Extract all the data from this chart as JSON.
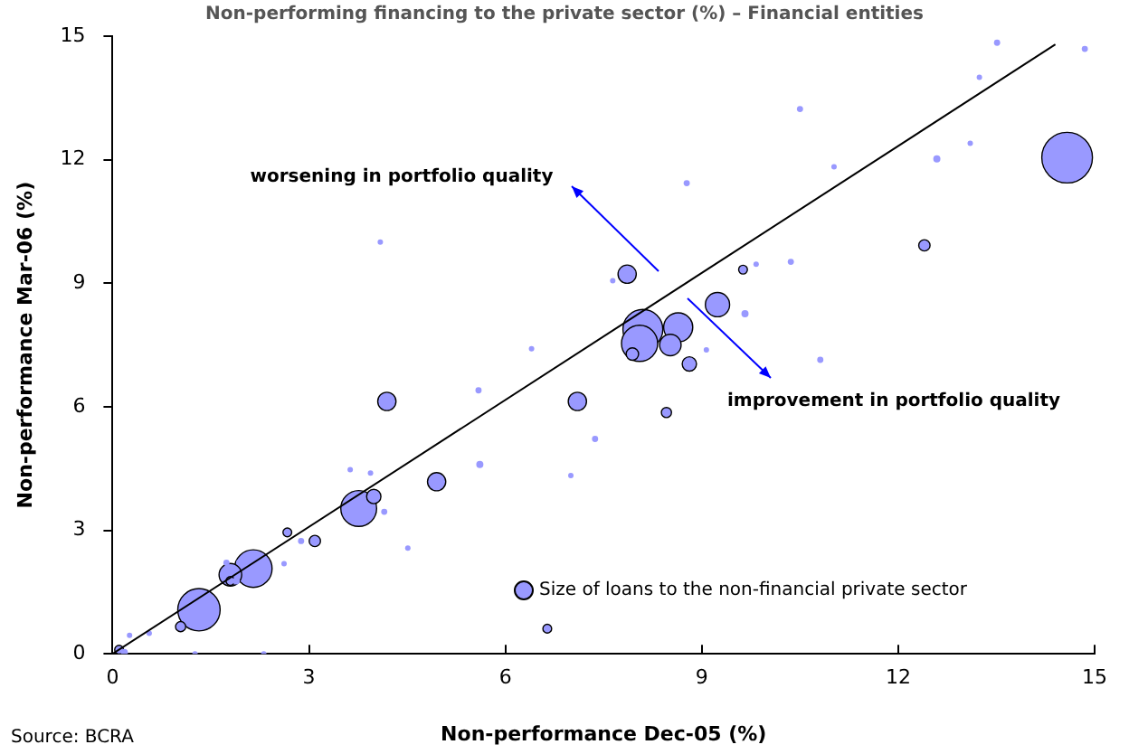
{
  "chart_data": {
    "type": "bubble",
    "title": "Non-performing financing to the private sector (%) – Financial entities",
    "xlabel": "Non-performance Dec-05 (%)",
    "ylabel": "Non-performance Mar-06 (%)",
    "xlim": [
      0,
      15
    ],
    "xticks": [
      0,
      3,
      6,
      9,
      12,
      15
    ],
    "ylim": [
      0,
      15
    ],
    "yticks": [
      0,
      3,
      6,
      9,
      12,
      15
    ],
    "grid": false,
    "legend": "bottom right",
    "annotations": [
      "worsening in portfolio quality",
      "improvement in portfolio quality",
      "Source: BCRA"
    ],
    "series": [
      {
        "name": "Size of loans to the non-financial private sector",
        "color": "#9999ff",
        "x": [
          14.58,
          1.32,
          2.15,
          1.8,
          3.76,
          7.86,
          8.1,
          8.64,
          8.05,
          8.52,
          7.94,
          9.24,
          8.81,
          7.1,
          8.46,
          7.37,
          9.66,
          9.63,
          9.83,
          10.36,
          10.81,
          7.64,
          6.4,
          9.07,
          13.51,
          14.85,
          10.5,
          13.24,
          11.02,
          12.59,
          13.1,
          8.77,
          12.4,
          4.19,
          5.59,
          3.63,
          3.94,
          5.61,
          4.95,
          3.99,
          4.15,
          4.51,
          2.67,
          2.88,
          3.09,
          2.62,
          1.74,
          1.93,
          1.8,
          1.89,
          1.04,
          0.56,
          0.26,
          0.1,
          0.18,
          1.26,
          2.31,
          6.64,
          4.09,
          7.0
        ],
        "values": [
          12.05,
          1.07,
          2.07,
          1.92,
          3.53,
          9.22,
          7.88,
          7.93,
          7.54,
          7.5,
          7.28,
          8.48,
          7.04,
          6.13,
          5.86,
          5.22,
          8.26,
          9.33,
          9.46,
          9.52,
          7.14,
          9.06,
          7.41,
          7.38,
          14.84,
          14.69,
          13.23,
          14.0,
          11.83,
          12.02,
          12.4,
          11.43,
          9.92,
          6.13,
          6.4,
          4.47,
          4.39,
          4.6,
          4.18,
          3.82,
          3.45,
          2.57,
          2.95,
          2.74,
          2.74,
          2.19,
          2.21,
          2.23,
          1.77,
          1.77,
          0.66,
          0.5,
          0.45,
          0.1,
          0.03,
          0,
          0,
          0.61,
          10.0,
          4.33
        ],
        "sizes": [
          1,
          0.7,
          0.55,
          0.2,
          0.5,
          0.13,
          0.62,
          0.33,
          0.51,
          0.18,
          0.06,
          0.23,
          0.08,
          0.13,
          0.04,
          0.015,
          0.02,
          0.03,
          0.005,
          0.015,
          0.015,
          0.005,
          0.005,
          0.005,
          0.015,
          0.015,
          0.015,
          0.005,
          0.005,
          0.02,
          0.003,
          0.015,
          0.05,
          0.13,
          0.015,
          0.01,
          0.005,
          0.02,
          0.13,
          0.08,
          0.015,
          0.003,
          0.03,
          0.015,
          0.05,
          0.005,
          0.015,
          0.01,
          0.03,
          0.02,
          0.04,
          0.01,
          0.005,
          0.03,
          0.02,
          0.01,
          0.005,
          0.03,
          0.003,
          0.003
        ]
      },
      {
        "type": "line",
        "color": "#000000",
        "x": [
          0,
          14.4
        ],
        "values": [
          0,
          14.8
        ]
      }
    ]
  }
}
